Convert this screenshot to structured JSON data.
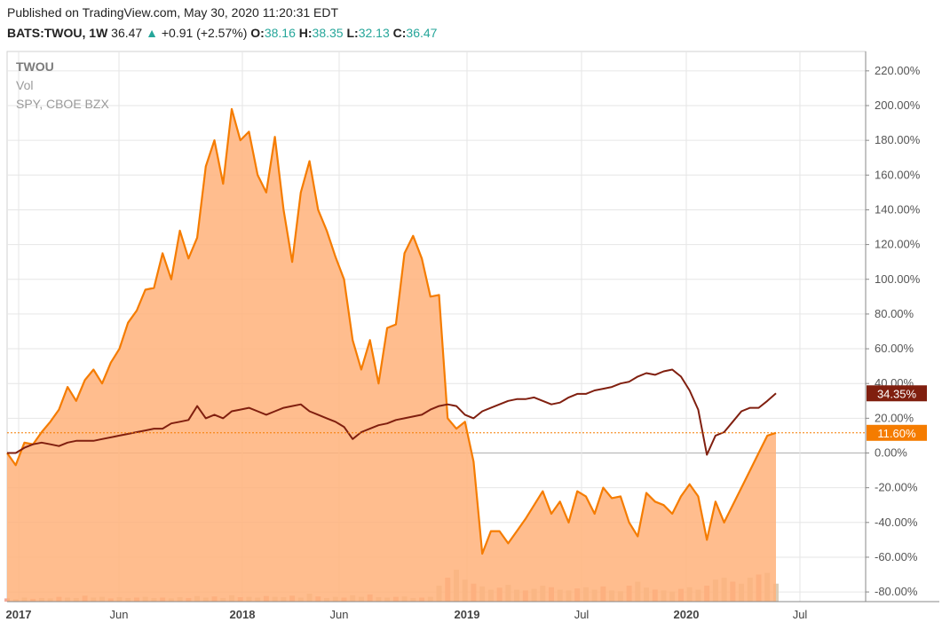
{
  "header": {
    "published": "Published on TradingView.com, May 30, 2020 11:20:31 EDT",
    "symbol": "BATS:TWOU, 1W",
    "last": "36.47",
    "arrow": "▲",
    "change": "+0.91 (+2.57%)",
    "o_label": "O:",
    "o_value": "38.16",
    "h_label": "H:",
    "h_value": "38.35",
    "l_label": "L:",
    "l_value": "32.13",
    "c_label": "C:",
    "c_value": "36.47"
  },
  "legend": {
    "main": "TWOU",
    "vol": "Vol",
    "compare": "SPY, CBOE BZX"
  },
  "badges": {
    "spy": "34.35%",
    "twou": "11.60%"
  },
  "colors": {
    "twou_line": "#f57c00",
    "twou_fill": "#ffb27a",
    "spy_line": "#801f0f",
    "volume": "#d8c8b0",
    "volume_red": "#f0a090",
    "grid": "#e6e6e6"
  },
  "chart_data": {
    "type": "area",
    "y_unit": "%",
    "ylim": [
      -85,
      225
    ],
    "y_ticks": [
      "220.00%",
      "200.00%",
      "180.00%",
      "160.00%",
      "140.00%",
      "120.00%",
      "100.00%",
      "80.00%",
      "60.00%",
      "40.00%",
      "20.00%",
      "0.00%",
      "-20.00%",
      "-40.00%",
      "-60.00%",
      "-80.00%"
    ],
    "x_ticks": [
      "2017",
      "Jun",
      "2018",
      "Jun",
      "2019",
      "Jul",
      "2020",
      "Jul"
    ],
    "grid": true,
    "series": [
      {
        "name": "TWOU",
        "x": [
          "2016-12-30",
          "2017-01-13",
          "2017-01-27",
          "2017-02-10",
          "2017-02-24",
          "2017-03-10",
          "2017-03-24",
          "2017-04-07",
          "2017-04-21",
          "2017-05-05",
          "2017-05-19",
          "2017-06-02",
          "2017-06-16",
          "2017-06-30",
          "2017-07-14",
          "2017-07-28",
          "2017-08-11",
          "2017-08-25",
          "2017-09-08",
          "2017-09-22",
          "2017-10-06",
          "2017-10-20",
          "2017-11-03",
          "2017-11-17",
          "2017-12-01",
          "2017-12-15",
          "2017-12-29",
          "2018-01-12",
          "2018-01-26",
          "2018-02-09",
          "2018-02-23",
          "2018-03-09",
          "2018-03-23",
          "2018-04-06",
          "2018-04-20",
          "2018-05-04",
          "2018-05-18",
          "2018-06-01",
          "2018-06-15",
          "2018-06-29",
          "2018-07-13",
          "2018-07-27",
          "2018-08-10",
          "2018-08-24",
          "2018-09-07",
          "2018-09-21",
          "2018-10-05",
          "2018-10-19",
          "2018-11-02",
          "2018-11-16",
          "2018-11-30",
          "2018-12-14",
          "2018-12-28",
          "2019-01-11",
          "2019-01-25",
          "2019-02-08",
          "2019-02-22",
          "2019-03-08",
          "2019-03-22",
          "2019-04-05",
          "2019-04-19",
          "2019-05-03",
          "2019-05-17",
          "2019-05-31",
          "2019-06-14",
          "2019-06-28",
          "2019-07-12",
          "2019-07-26",
          "2019-08-09",
          "2019-08-23",
          "2019-09-06",
          "2019-09-20",
          "2019-10-04",
          "2019-10-18",
          "2019-11-01",
          "2019-11-15",
          "2019-11-29",
          "2019-12-13",
          "2019-12-27",
          "2020-01-10",
          "2020-01-24",
          "2020-02-07",
          "2020-02-21",
          "2020-03-06",
          "2020-03-20",
          "2020-04-03",
          "2020-04-17",
          "2020-05-01",
          "2020-05-15",
          "2020-05-29"
        ],
        "values": [
          0,
          -7,
          6,
          5,
          12,
          18,
          25,
          38,
          30,
          42,
          48,
          40,
          52,
          60,
          75,
          82,
          94,
          95,
          115,
          100,
          128,
          112,
          124,
          165,
          180,
          155,
          198,
          180,
          185,
          160,
          150,
          182,
          140,
          110,
          150,
          168,
          140,
          128,
          113,
          100,
          65,
          48,
          65,
          40,
          72,
          74,
          115,
          125,
          112,
          90,
          91,
          20,
          14,
          18,
          -5,
          -58,
          -45,
          -45,
          -52,
          -45,
          -38,
          -30,
          -22,
          -35,
          -28,
          -40,
          -22,
          -25,
          -35,
          -20,
          -26,
          -25,
          -40,
          -48,
          -23,
          -28,
          -30,
          -35,
          -25,
          -18,
          -25,
          -50,
          -28,
          -40,
          -30,
          -20,
          -10,
          0,
          10,
          11.6
        ]
      },
      {
        "name": "SPY, CBOE BZX",
        "x": [
          "2016-12-30",
          "2017-01-13",
          "2017-01-27",
          "2017-02-10",
          "2017-02-24",
          "2017-03-10",
          "2017-03-24",
          "2017-04-07",
          "2017-04-21",
          "2017-05-05",
          "2017-05-19",
          "2017-06-02",
          "2017-06-16",
          "2017-06-30",
          "2017-07-14",
          "2017-07-28",
          "2017-08-11",
          "2017-08-25",
          "2017-09-08",
          "2017-09-22",
          "2017-10-06",
          "2017-10-20",
          "2017-11-03",
          "2017-11-17",
          "2017-12-01",
          "2017-12-15",
          "2017-12-29",
          "2018-01-12",
          "2018-01-26",
          "2018-02-09",
          "2018-02-23",
          "2018-03-09",
          "2018-03-23",
          "2018-04-06",
          "2018-04-20",
          "2018-05-04",
          "2018-05-18",
          "2018-06-01",
          "2018-06-15",
          "2018-06-29",
          "2018-07-13",
          "2018-07-27",
          "2018-08-10",
          "2018-08-24",
          "2018-09-07",
          "2018-09-21",
          "2018-10-05",
          "2018-10-19",
          "2018-11-02",
          "2018-11-16",
          "2018-11-30",
          "2018-12-14",
          "2018-12-28",
          "2019-01-11",
          "2019-01-25",
          "2019-02-08",
          "2019-02-22",
          "2019-03-08",
          "2019-03-22",
          "2019-04-05",
          "2019-04-19",
          "2019-05-03",
          "2019-05-17",
          "2019-05-31",
          "2019-06-14",
          "2019-06-28",
          "2019-07-12",
          "2019-07-26",
          "2019-08-09",
          "2019-08-23",
          "2019-09-06",
          "2019-09-20",
          "2019-10-04",
          "2019-10-18",
          "2019-11-01",
          "2019-11-15",
          "2019-11-29",
          "2019-12-13",
          "2019-12-27",
          "2020-01-10",
          "2020-01-24",
          "2020-02-07",
          "2020-02-21",
          "2020-03-06",
          "2020-03-20",
          "2020-04-03",
          "2020-04-17",
          "2020-05-01",
          "2020-05-15",
          "2020-05-29"
        ],
        "values": [
          0,
          0,
          3,
          5,
          6,
          5,
          4,
          6,
          7,
          7,
          7,
          8,
          9,
          10,
          11,
          12,
          13,
          14,
          14,
          17,
          18,
          19,
          27,
          20,
          22,
          20,
          24,
          25,
          26,
          24,
          22,
          24,
          26,
          27,
          28,
          24,
          22,
          20,
          18,
          15,
          8,
          12,
          14,
          16,
          17,
          19,
          20,
          21,
          22,
          25,
          27,
          28,
          27,
          22,
          20,
          24,
          26,
          28,
          30,
          31,
          31,
          32,
          30,
          28,
          29,
          32,
          34,
          34,
          36,
          37,
          38,
          40,
          41,
          44,
          46,
          45,
          47,
          48,
          44,
          36,
          25,
          -1,
          10,
          12,
          18,
          24,
          26,
          26,
          30,
          34.35
        ]
      },
      {
        "name": "Vol",
        "x": [
          "2016-12-30",
          "2017-01-13",
          "2017-01-27",
          "2017-02-10",
          "2017-02-24",
          "2017-03-10",
          "2017-03-24",
          "2017-04-07",
          "2017-04-21",
          "2017-05-05",
          "2017-05-19",
          "2017-06-02",
          "2017-06-16",
          "2017-06-30",
          "2017-07-14",
          "2017-07-28",
          "2017-08-11",
          "2017-08-25",
          "2017-09-08",
          "2017-09-22",
          "2017-10-06",
          "2017-10-20",
          "2017-11-03",
          "2017-11-17",
          "2017-12-01",
          "2017-12-15",
          "2017-12-29",
          "2018-01-12",
          "2018-01-26",
          "2018-02-09",
          "2018-02-23",
          "2018-03-09",
          "2018-03-23",
          "2018-04-06",
          "2018-04-20",
          "2018-05-04",
          "2018-05-18",
          "2018-06-01",
          "2018-06-15",
          "2018-06-29",
          "2018-07-13",
          "2018-07-27",
          "2018-08-10",
          "2018-08-24",
          "2018-09-07",
          "2018-09-21",
          "2018-10-05",
          "2018-10-19",
          "2018-11-02",
          "2018-11-16",
          "2018-11-30",
          "2018-12-14",
          "2018-12-28",
          "2019-01-11",
          "2019-01-25",
          "2019-02-08",
          "2019-02-22",
          "2019-03-08",
          "2019-03-22",
          "2019-04-05",
          "2019-04-19",
          "2019-05-03",
          "2019-05-17",
          "2019-05-31",
          "2019-06-14",
          "2019-06-28",
          "2019-07-12",
          "2019-07-26",
          "2019-08-09",
          "2019-08-23",
          "2019-09-06",
          "2019-09-20",
          "2019-10-04",
          "2019-10-18",
          "2019-11-01",
          "2019-11-15",
          "2019-11-29",
          "2019-12-13",
          "2019-12-27",
          "2020-01-10",
          "2020-01-24",
          "2020-02-07",
          "2020-02-21",
          "2020-03-06",
          "2020-03-20",
          "2020-04-03",
          "2020-04-17",
          "2020-05-01",
          "2020-05-15",
          "2020-05-29"
        ],
        "values": [
          0.08,
          0.06,
          0.1,
          0.07,
          0.09,
          0.08,
          0.12,
          0.1,
          0.09,
          0.15,
          0.1,
          0.12,
          0.08,
          0.11,
          0.09,
          0.1,
          0.12,
          0.09,
          0.1,
          0.08,
          0.11,
          0.09,
          0.14,
          0.1,
          0.13,
          0.09,
          0.16,
          0.11,
          0.12,
          0.1,
          0.14,
          0.12,
          0.11,
          0.15,
          0.1,
          0.2,
          0.13,
          0.09,
          0.12,
          0.1,
          0.16,
          0.12,
          0.18,
          0.11,
          0.1,
          0.12,
          0.13,
          0.09,
          0.1,
          0.12,
          0.4,
          0.6,
          0.8,
          0.55,
          0.45,
          0.38,
          0.3,
          0.35,
          0.42,
          0.3,
          0.28,
          0.32,
          0.4,
          0.36,
          0.3,
          0.28,
          0.33,
          0.36,
          0.3,
          0.38,
          0.28,
          0.26,
          0.4,
          0.5,
          0.35,
          0.3,
          0.28,
          0.25,
          0.32,
          0.36,
          0.3,
          0.4,
          0.55,
          0.6,
          0.5,
          0.45,
          0.6,
          0.68,
          0.72,
          0.45
        ]
      }
    ]
  }
}
